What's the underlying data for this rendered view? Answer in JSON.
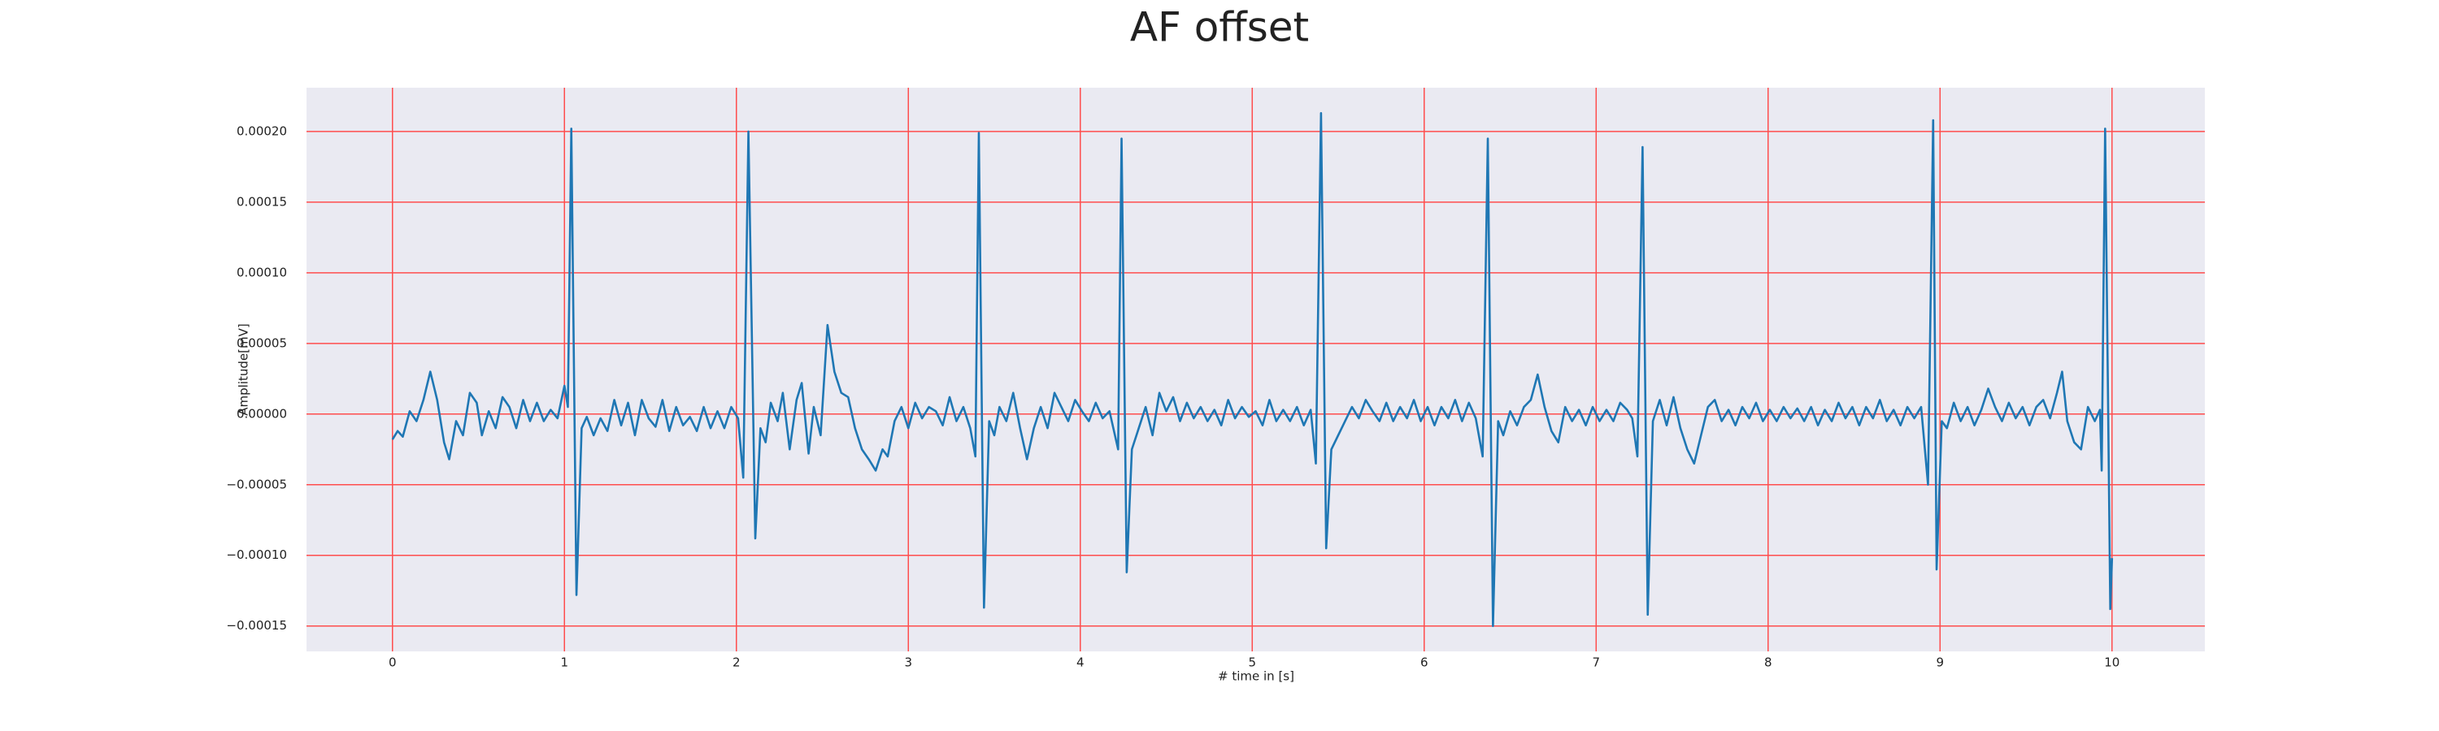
{
  "chart_data": {
    "type": "line",
    "title": "AF offset",
    "x_label": "# time in [s]",
    "y_label": "Amplitude[mV]",
    "color": "#1f77b4",
    "grid": true,
    "background": "#eaeaf2",
    "grid_color": "#ff4d4d",
    "xlim": [
      -0.5,
      10.54
    ],
    "xticks": [
      0,
      1,
      2,
      3,
      4,
      5,
      6,
      7,
      8,
      9,
      10
    ],
    "ylim": [
      -0.000168,
      0.000231
    ],
    "yticks": [
      {
        "value": -0.00015,
        "label": "−0.00015"
      },
      {
        "value": -0.0001,
        "label": "−0.00010"
      },
      {
        "value": -5e-05,
        "label": "−0.00005"
      },
      {
        "value": 0,
        "label": "0.00000"
      },
      {
        "value": 5e-05,
        "label": "0.00005"
      },
      {
        "value": 0.0001,
        "label": "0.00010"
      },
      {
        "value": 0.00015,
        "label": "0.00015"
      },
      {
        "value": 0.0002,
        "label": "0.00020"
      }
    ],
    "x": [
      0,
      0.03,
      0.06,
      0.1,
      0.14,
      0.18,
      0.22,
      0.26,
      0.3,
      0.33,
      0.37,
      0.41,
      0.45,
      0.49,
      0.52,
      0.56,
      0.6,
      0.64,
      0.68,
      0.72,
      0.76,
      0.8,
      0.84,
      0.88,
      0.92,
      0.96,
      1.0,
      1.02,
      1.04,
      1.07,
      1.1,
      1.13,
      1.17,
      1.21,
      1.25,
      1.29,
      1.33,
      1.37,
      1.41,
      1.45,
      1.49,
      1.53,
      1.57,
      1.61,
      1.65,
      1.69,
      1.73,
      1.77,
      1.81,
      1.85,
      1.89,
      1.93,
      1.97,
      2.01,
      2.04,
      2.07,
      2.11,
      2.14,
      2.17,
      2.2,
      2.24,
      2.27,
      2.31,
      2.35,
      2.38,
      2.42,
      2.45,
      2.49,
      2.53,
      2.57,
      2.61,
      2.65,
      2.69,
      2.73,
      2.77,
      2.81,
      2.85,
      2.88,
      2.92,
      2.96,
      3.0,
      3.04,
      3.08,
      3.12,
      3.16,
      3.2,
      3.24,
      3.28,
      3.32,
      3.36,
      3.39,
      3.41,
      3.44,
      3.47,
      3.5,
      3.53,
      3.57,
      3.61,
      3.65,
      3.69,
      3.73,
      3.77,
      3.81,
      3.85,
      3.89,
      3.93,
      3.97,
      4.01,
      4.05,
      4.09,
      4.13,
      4.17,
      4.22,
      4.24,
      4.27,
      4.3,
      4.34,
      4.38,
      4.42,
      4.46,
      4.5,
      4.54,
      4.58,
      4.62,
      4.66,
      4.7,
      4.74,
      4.78,
      4.82,
      4.86,
      4.9,
      4.94,
      4.98,
      5.02,
      5.06,
      5.1,
      5.14,
      5.18,
      5.22,
      5.26,
      5.3,
      5.34,
      5.37,
      5.4,
      5.43,
      5.46,
      5.5,
      5.54,
      5.58,
      5.62,
      5.66,
      5.7,
      5.74,
      5.78,
      5.82,
      5.86,
      5.9,
      5.94,
      5.98,
      6.02,
      6.06,
      6.1,
      6.14,
      6.18,
      6.22,
      6.26,
      6.3,
      6.34,
      6.37,
      6.4,
      6.43,
      6.46,
      6.5,
      6.54,
      6.58,
      6.62,
      6.66,
      6.7,
      6.74,
      6.78,
      6.82,
      6.86,
      6.9,
      6.94,
      6.98,
      7.02,
      7.06,
      7.1,
      7.14,
      7.18,
      7.21,
      7.24,
      7.27,
      7.3,
      7.33,
      7.37,
      7.41,
      7.45,
      7.49,
      7.53,
      7.57,
      7.61,
      7.65,
      7.69,
      7.73,
      7.77,
      7.81,
      7.85,
      7.89,
      7.93,
      7.97,
      8.01,
      8.05,
      8.09,
      8.13,
      8.17,
      8.21,
      8.25,
      8.29,
      8.33,
      8.37,
      8.41,
      8.45,
      8.49,
      8.53,
      8.57,
      8.61,
      8.65,
      8.69,
      8.73,
      8.77,
      8.81,
      8.85,
      8.89,
      8.93,
      8.96,
      8.98,
      9.01,
      9.04,
      9.08,
      9.12,
      9.16,
      9.2,
      9.24,
      9.28,
      9.32,
      9.36,
      9.4,
      9.44,
      9.48,
      9.52,
      9.56,
      9.6,
      9.64,
      9.68,
      9.71,
      9.74,
      9.78,
      9.82,
      9.86,
      9.9,
      9.93,
      9.94,
      9.96,
      9.99,
      10.0
    ],
    "values": [
      -1.8e-05,
      -1.2e-05,
      -1.6e-05,
      2e-06,
      -5e-06,
      1e-05,
      3e-05,
      1e-05,
      -2e-05,
      -3.2e-05,
      -5e-06,
      -1.5e-05,
      1.5e-05,
      8e-06,
      -1.5e-05,
      2e-06,
      -1e-05,
      1.2e-05,
      5e-06,
      -1e-05,
      1e-05,
      -5e-06,
      8e-06,
      -5e-06,
      3e-06,
      -3e-06,
      2e-05,
      5e-06,
      0.000202,
      -0.000128,
      -1e-05,
      -2e-06,
      -1.5e-05,
      -3e-06,
      -1.2e-05,
      1e-05,
      -8e-06,
      8e-06,
      -1.5e-05,
      1e-05,
      -3e-06,
      -9e-06,
      1e-05,
      -1.2e-05,
      5e-06,
      -8e-06,
      -2e-06,
      -1.2e-05,
      5e-06,
      -1e-05,
      2e-06,
      -1e-05,
      5e-06,
      -3e-06,
      -4.5e-05,
      0.0002,
      -8.8e-05,
      -1e-05,
      -2e-05,
      8e-06,
      -5e-06,
      1.5e-05,
      -2.5e-05,
      1e-05,
      2.2e-05,
      -2.8e-05,
      5e-06,
      -1.5e-05,
      6.3e-05,
      3e-05,
      1.5e-05,
      1.2e-05,
      -1e-05,
      -2.5e-05,
      -3.2e-05,
      -4e-05,
      -2.5e-05,
      -3e-05,
      -5e-06,
      5e-06,
      -1e-05,
      8e-06,
      -3e-06,
      5e-06,
      2e-06,
      -8e-06,
      1.2e-05,
      -5e-06,
      5e-06,
      -1e-05,
      -3e-05,
      0.000199,
      -0.000137,
      -5e-06,
      -1.5e-05,
      5e-06,
      -5e-06,
      1.5e-05,
      -1e-05,
      -3.2e-05,
      -1e-05,
      5e-06,
      -1e-05,
      1.5e-05,
      5e-06,
      -5e-06,
      1e-05,
      2e-06,
      -5e-06,
      8e-06,
      -3e-06,
      2e-06,
      -2.5e-05,
      0.000195,
      -0.000112,
      -2.5e-05,
      -1e-05,
      5e-06,
      -1.5e-05,
      1.5e-05,
      2e-06,
      1.2e-05,
      -5e-06,
      8e-06,
      -3e-06,
      5e-06,
      -5e-06,
      3e-06,
      -8e-06,
      1e-05,
      -3e-06,
      5e-06,
      -2e-06,
      2e-06,
      -8e-06,
      1e-05,
      -5e-06,
      3e-06,
      -5e-06,
      5e-06,
      -8e-06,
      3e-06,
      -3.5e-05,
      0.000213,
      -9.5e-05,
      -2.5e-05,
      -1.5e-05,
      -5e-06,
      5e-06,
      -3e-06,
      1e-05,
      2e-06,
      -5e-06,
      8e-06,
      -5e-06,
      5e-06,
      -3e-06,
      1e-05,
      -5e-06,
      5e-06,
      -8e-06,
      5e-06,
      -3e-06,
      1e-05,
      -5e-06,
      8e-06,
      -3e-06,
      -3e-05,
      0.000195,
      -0.00015,
      -5e-06,
      -1.5e-05,
      2e-06,
      -8e-06,
      5e-06,
      1e-05,
      2.8e-05,
      5e-06,
      -1.2e-05,
      -2e-05,
      5e-06,
      -5e-06,
      3e-06,
      -8e-06,
      5e-06,
      -5e-06,
      3e-06,
      -5e-06,
      8e-06,
      3e-06,
      -3e-06,
      -3e-05,
      0.000189,
      -0.000142,
      -5e-06,
      1e-05,
      -8e-06,
      1.2e-05,
      -1e-05,
      -2.5e-05,
      -3.5e-05,
      -1.5e-05,
      5e-06,
      1e-05,
      -5e-06,
      3e-06,
      -8e-06,
      5e-06,
      -3e-06,
      8e-06,
      -5e-06,
      3e-06,
      -5e-06,
      5e-06,
      -3e-06,
      4e-06,
      -5e-06,
      5e-06,
      -8e-06,
      3e-06,
      -5e-06,
      8e-06,
      -3e-06,
      5e-06,
      -8e-06,
      5e-06,
      -3e-06,
      1e-05,
      -5e-06,
      3e-06,
      -8e-06,
      5e-06,
      -3e-06,
      5e-06,
      -5e-05,
      0.000208,
      -0.00011,
      -5e-06,
      -1e-05,
      8e-06,
      -5e-06,
      5e-06,
      -8e-06,
      3e-06,
      1.8e-05,
      5e-06,
      -5e-06,
      8e-06,
      -3e-06,
      5e-06,
      -8e-06,
      5e-06,
      1e-05,
      -3e-06,
      1.5e-05,
      3e-05,
      -5e-06,
      -2e-05,
      -2.5e-05,
      5e-06,
      -5e-06,
      3e-06,
      -4e-05,
      0.000202,
      -0.000138,
      -0.000102
    ]
  }
}
